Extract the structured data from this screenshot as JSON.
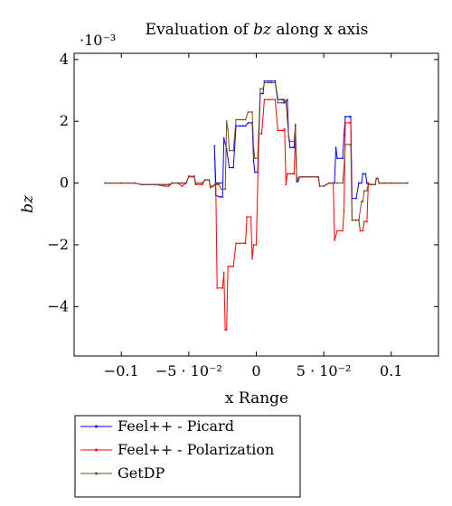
{
  "chart_data": {
    "type": "line",
    "title_prefix": "Evaluation of ",
    "title_var": "bz",
    "title_suffix": " along x axis",
    "xlabel": "x Range",
    "ylabel": "bz",
    "y_multiplier": "·10⁻³",
    "xlim": [
      -0.135,
      0.135
    ],
    "ylim": [
      -5.6,
      4.2
    ],
    "x_ticks": [
      -0.1,
      -0.05,
      0,
      0.05,
      0.1
    ],
    "x_tick_labels": [
      "−0.1",
      "−5 · 10⁻²",
      "0",
      "5 · 10⁻²",
      "0.1"
    ],
    "y_ticks": [
      -4,
      -2,
      0,
      2,
      4
    ],
    "y_tick_labels": [
      "−4",
      "−2",
      "0",
      "2",
      "4"
    ],
    "legend_position": "below",
    "series": [
      {
        "name": "Feel++ - Picard",
        "color": "#0000ff",
        "points": [
          [
            -0.112,
            0
          ],
          [
            -0.1,
            0
          ],
          [
            -0.09,
            0
          ],
          [
            -0.085,
            -0.05
          ],
          [
            -0.075,
            -0.05
          ],
          [
            -0.068,
            -0.05
          ],
          [
            -0.065,
            -0.05
          ],
          [
            -0.062,
            0
          ],
          [
            -0.058,
            0
          ],
          [
            -0.055,
            0
          ],
          [
            -0.052,
            0
          ],
          [
            -0.05,
            0.22
          ],
          [
            -0.046,
            0.22
          ],
          [
            -0.045,
            0
          ],
          [
            -0.04,
            0
          ],
          [
            -0.038,
            0.1
          ],
          [
            -0.035,
            0.1
          ],
          [
            -0.034,
            -0.1
          ],
          [
            -0.032,
            -0.1
          ],
          [
            -0.03,
            0
          ],
          [
            -0.028,
            0
          ],
          [
            -0.026,
            0
          ],
          [
            -0.03,
            0
          ],
          [
            -0.029,
            -0.02
          ],
          [
            -0.03,
            0
          ],
          [
            -0.031,
            1.2
          ],
          [
            -0.03,
            -0.4
          ],
          [
            -0.027,
            -0.45
          ],
          [
            -0.025,
            -0.45
          ],
          [
            -0.024,
            1.45
          ],
          [
            -0.022,
            1.1
          ],
          [
            -0.02,
            0.5
          ],
          [
            -0.017,
            0.5
          ],
          [
            -0.015,
            1.85
          ],
          [
            -0.012,
            1.85
          ],
          [
            -0.01,
            1.85
          ],
          [
            -0.008,
            1.85
          ],
          [
            -0.006,
            1.95
          ],
          [
            -0.003,
            1.95
          ],
          [
            -0.002,
            0.7
          ],
          [
            -0.001,
            0.35
          ],
          [
            0.001,
            0.35
          ],
          [
            0.003,
            2.9
          ],
          [
            0.005,
            2.9
          ],
          [
            0.006,
            3.3
          ],
          [
            0.009,
            3.3
          ],
          [
            0.011,
            3.3
          ],
          [
            0.014,
            3.3
          ],
          [
            0.016,
            2.7
          ],
          [
            0.019,
            2.7
          ],
          [
            0.02,
            2.7
          ],
          [
            0.021,
            2.6
          ],
          [
            0.023,
            2.7
          ],
          [
            0.024,
            1.5
          ],
          [
            0.025,
            1.15
          ],
          [
            0.027,
            1.15
          ],
          [
            0.028,
            1.15
          ],
          [
            0.029,
            1.85
          ],
          [
            0.03,
            0.05
          ],
          [
            0.031,
            0.05
          ],
          [
            0.032,
            0.2
          ],
          [
            0.034,
            0.2
          ],
          [
            0.04,
            0.2
          ],
          [
            0.046,
            0.2
          ],
          [
            0.047,
            -0.1
          ],
          [
            0.05,
            -0.1
          ],
          [
            0.052,
            -0.05
          ],
          [
            0.054,
            0
          ],
          [
            0.057,
            0
          ],
          [
            0.058,
            0
          ],
          [
            0.059,
            1.15
          ],
          [
            0.06,
            0.8
          ],
          [
            0.064,
            0.8
          ],
          [
            0.065,
            1.55
          ],
          [
            0.066,
            2.15
          ],
          [
            0.069,
            2.15
          ],
          [
            0.07,
            2.15
          ],
          [
            0.071,
            -0.5
          ],
          [
            0.074,
            -0.5
          ],
          [
            0.076,
            0
          ],
          [
            0.078,
            0
          ],
          [
            0.079,
            0.3
          ],
          [
            0.081,
            0.3
          ],
          [
            0.082,
            0
          ],
          [
            0.085,
            -0.05
          ],
          [
            0.088,
            -0.05
          ],
          [
            0.089,
            0.15
          ],
          [
            0.09,
            0.15
          ],
          [
            0.091,
            0
          ],
          [
            0.095,
            0
          ],
          [
            0.1,
            0
          ],
          [
            0.112,
            0
          ]
        ]
      },
      {
        "name": "Feel++ - Polarization",
        "color": "#ff0000",
        "points": [
          [
            -0.112,
            0
          ],
          [
            -0.1,
            0
          ],
          [
            -0.09,
            0
          ],
          [
            -0.085,
            -0.05
          ],
          [
            -0.075,
            -0.05
          ],
          [
            -0.068,
            -0.1
          ],
          [
            -0.065,
            -0.1
          ],
          [
            -0.062,
            0
          ],
          [
            -0.058,
            0
          ],
          [
            -0.055,
            -0.1
          ],
          [
            -0.052,
            0
          ],
          [
            -0.05,
            0.2
          ],
          [
            -0.046,
            0.2
          ],
          [
            -0.045,
            -0.05
          ],
          [
            -0.04,
            -0.05
          ],
          [
            -0.038,
            0.1
          ],
          [
            -0.035,
            0.1
          ],
          [
            -0.034,
            -0.15
          ],
          [
            -0.032,
            -0.1
          ],
          [
            -0.03,
            -0.05
          ],
          [
            -0.028,
            -0.05
          ],
          [
            -0.03,
            -0.05
          ],
          [
            -0.029,
            -3.4
          ],
          [
            -0.025,
            -3.4
          ],
          [
            -0.024,
            -2.9
          ],
          [
            -0.023,
            -4.75
          ],
          [
            -0.022,
            -4.75
          ],
          [
            -0.021,
            -2.7
          ],
          [
            -0.019,
            -2.7
          ],
          [
            -0.017,
            -2.7
          ],
          [
            -0.015,
            -1.95
          ],
          [
            -0.012,
            -1.95
          ],
          [
            -0.009,
            -1.95
          ],
          [
            -0.008,
            -1.95
          ],
          [
            -0.007,
            -1.1
          ],
          [
            -0.004,
            -1.1
          ],
          [
            -0.003,
            -2.45
          ],
          [
            -0.002,
            -2.0
          ],
          [
            0.0,
            -2.0
          ],
          [
            0.002,
            1.6
          ],
          [
            0.004,
            1.6
          ],
          [
            0.006,
            2.7
          ],
          [
            0.009,
            2.7
          ],
          [
            0.011,
            2.7
          ],
          [
            0.014,
            2.7
          ],
          [
            0.016,
            1.7
          ],
          [
            0.019,
            1.7
          ],
          [
            0.02,
            1.7
          ],
          [
            0.021,
            1.75
          ],
          [
            0.022,
            -0.05
          ],
          [
            0.023,
            0.3
          ],
          [
            0.025,
            0.3
          ],
          [
            0.027,
            0.3
          ],
          [
            0.028,
            0.3
          ],
          [
            0.029,
            1.5
          ],
          [
            0.03,
            0.1
          ],
          [
            0.031,
            0.15
          ],
          [
            0.032,
            0.2
          ],
          [
            0.034,
            0.2
          ],
          [
            0.04,
            0.2
          ],
          [
            0.046,
            0.2
          ],
          [
            0.047,
            -0.1
          ],
          [
            0.05,
            -0.1
          ],
          [
            0.052,
            -0.05
          ],
          [
            0.054,
            0
          ],
          [
            0.057,
            0
          ],
          [
            0.058,
            -1.85
          ],
          [
            0.06,
            -1.55
          ],
          [
            0.064,
            -1.55
          ],
          [
            0.065,
            -0.9
          ],
          [
            0.066,
            1.95
          ],
          [
            0.069,
            1.95
          ],
          [
            0.07,
            1.95
          ],
          [
            0.071,
            -1.2
          ],
          [
            0.074,
            -1.2
          ],
          [
            0.076,
            -1.2
          ],
          [
            0.077,
            -1.55
          ],
          [
            0.079,
            -1.55
          ],
          [
            0.08,
            -1.25
          ],
          [
            0.082,
            -1.25
          ],
          [
            0.083,
            -0.05
          ],
          [
            0.085,
            -0.05
          ],
          [
            0.088,
            -0.05
          ],
          [
            0.089,
            0.15
          ],
          [
            0.09,
            0.15
          ],
          [
            0.091,
            0
          ],
          [
            0.095,
            0
          ],
          [
            0.1,
            0
          ],
          [
            0.112,
            0
          ]
        ]
      },
      {
        "name": "GetDP",
        "color": "#7a4a26",
        "points": [
          [
            -0.112,
            0
          ],
          [
            -0.1,
            0
          ],
          [
            -0.09,
            0
          ],
          [
            -0.085,
            -0.05
          ],
          [
            -0.075,
            -0.05
          ],
          [
            -0.068,
            -0.05
          ],
          [
            -0.065,
            -0.05
          ],
          [
            -0.062,
            0
          ],
          [
            -0.058,
            0
          ],
          [
            -0.055,
            0
          ],
          [
            -0.052,
            0
          ],
          [
            -0.05,
            0.22
          ],
          [
            -0.046,
            0.22
          ],
          [
            -0.045,
            0
          ],
          [
            -0.04,
            0
          ],
          [
            -0.038,
            0.1
          ],
          [
            -0.035,
            0.1
          ],
          [
            -0.034,
            -0.1
          ],
          [
            -0.032,
            -0.1
          ],
          [
            -0.03,
            0
          ],
          [
            -0.028,
            0
          ],
          [
            -0.026,
            -0.2
          ],
          [
            -0.023,
            -0.2
          ],
          [
            -0.022,
            2.0
          ],
          [
            -0.021,
            1.75
          ],
          [
            -0.02,
            1.05
          ],
          [
            -0.017,
            1.05
          ],
          [
            -0.015,
            2.05
          ],
          [
            -0.012,
            2.05
          ],
          [
            -0.01,
            2.05
          ],
          [
            -0.008,
            2.05
          ],
          [
            -0.006,
            2.3
          ],
          [
            -0.003,
            2.3
          ],
          [
            -0.002,
            1.15
          ],
          [
            -0.001,
            0.8
          ],
          [
            0.001,
            0.8
          ],
          [
            0.003,
            3.05
          ],
          [
            0.005,
            3.05
          ],
          [
            0.006,
            3.25
          ],
          [
            0.009,
            3.25
          ],
          [
            0.011,
            3.25
          ],
          [
            0.014,
            3.25
          ],
          [
            0.016,
            2.6
          ],
          [
            0.019,
            2.6
          ],
          [
            0.02,
            2.6
          ],
          [
            0.021,
            2.7
          ],
          [
            0.022,
            2.65
          ],
          [
            0.024,
            1.5
          ],
          [
            0.025,
            1.35
          ],
          [
            0.028,
            1.35
          ],
          [
            0.029,
            1.9
          ],
          [
            0.03,
            0.1
          ],
          [
            0.031,
            0.15
          ],
          [
            0.032,
            0.2
          ],
          [
            0.034,
            0.2
          ],
          [
            0.04,
            0.2
          ],
          [
            0.046,
            0.2
          ],
          [
            0.047,
            -0.1
          ],
          [
            0.05,
            -0.1
          ],
          [
            0.052,
            -0.05
          ],
          [
            0.054,
            0
          ],
          [
            0.057,
            0
          ],
          [
            0.058,
            0
          ],
          [
            0.06,
            0
          ],
          [
            0.064,
            0
          ],
          [
            0.065,
            0.5
          ],
          [
            0.066,
            1.25
          ],
          [
            0.069,
            1.25
          ],
          [
            0.07,
            1.25
          ],
          [
            0.071,
            -1.2
          ],
          [
            0.074,
            -1.2
          ],
          [
            0.076,
            -1.2
          ],
          [
            0.078,
            -0.6
          ],
          [
            0.079,
            -0.6
          ],
          [
            0.08,
            -0.25
          ],
          [
            0.082,
            -0.25
          ],
          [
            0.083,
            0
          ],
          [
            0.085,
            -0.05
          ],
          [
            0.088,
            -0.05
          ],
          [
            0.089,
            0.15
          ],
          [
            0.09,
            0.15
          ],
          [
            0.091,
            0
          ],
          [
            0.095,
            0
          ],
          [
            0.1,
            0
          ],
          [
            0.112,
            0
          ]
        ]
      }
    ]
  }
}
